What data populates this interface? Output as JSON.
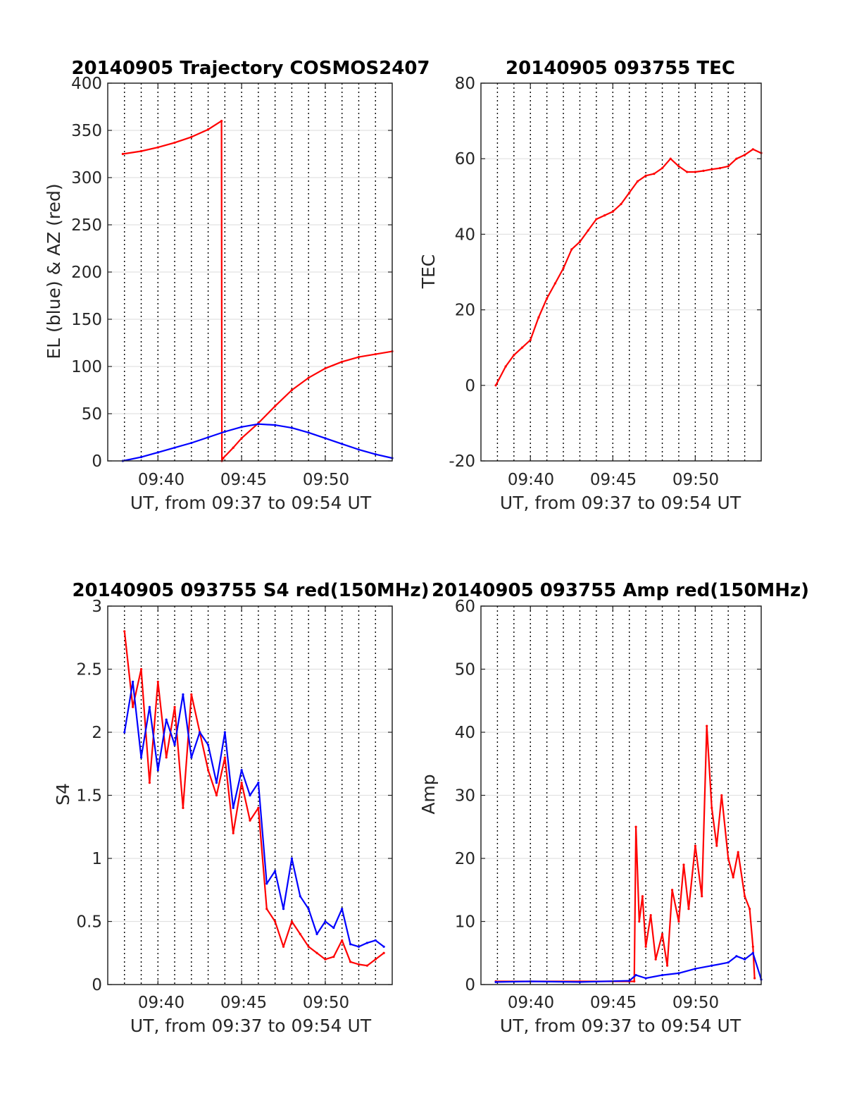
{
  "figure": {
    "xlabel": "UT, from 09:37 to 09:54 UT",
    "x_tick_labels": [
      "09:40",
      "09:45",
      "09:50"
    ]
  },
  "chart_data": [
    {
      "type": "line",
      "title": "20140905 Trajectory COSMOS2407",
      "xlabel": "UT, from 09:37 to 09:54 UT",
      "ylabel": "EL (blue) & AZ (red)",
      "x_unit": "minutes after 09:37 UT",
      "xlim": [
        0,
        17
      ],
      "ylim": [
        0,
        400
      ],
      "yticks": [
        0,
        50,
        100,
        150,
        200,
        250,
        300,
        350,
        400
      ],
      "grid": true,
      "series": [
        {
          "name": "AZ",
          "color": "#ff0000",
          "x": [
            0.9,
            2,
            3,
            4,
            5,
            6,
            6.8,
            6.82,
            6.9,
            7.5,
            8,
            9,
            10,
            11,
            12,
            13,
            14,
            15,
            16,
            17
          ],
          "y": [
            325,
            328,
            332,
            337,
            343,
            351,
            360,
            0,
            3,
            14,
            24,
            40,
            58,
            75,
            88,
            98,
            105,
            110,
            113,
            116
          ]
        },
        {
          "name": "EL",
          "color": "#0000ff",
          "x": [
            0.9,
            2,
            3,
            4,
            5,
            6,
            7,
            8,
            9,
            10,
            11,
            12,
            13,
            14,
            15,
            16,
            17
          ],
          "y": [
            0,
            4,
            9,
            14,
            19,
            25,
            31,
            36,
            39,
            38,
            35,
            30,
            24,
            18,
            12,
            7,
            3
          ]
        }
      ]
    },
    {
      "type": "line",
      "title": "20140905 093755 TEC",
      "xlabel": "UT, from 09:37 to 09:54 UT",
      "ylabel": "TEC",
      "x_unit": "minutes after 09:37 UT",
      "xlim": [
        0,
        17
      ],
      "ylim": [
        -20,
        80
      ],
      "yticks": [
        -20,
        0,
        20,
        40,
        60,
        80
      ],
      "grid": true,
      "series": [
        {
          "name": "TEC",
          "color": "#ff0000",
          "x": [
            0.9,
            1.5,
            2,
            2.5,
            3,
            3.5,
            4,
            4.5,
            5,
            5.5,
            6,
            6.5,
            7,
            7.5,
            8,
            8.5,
            9,
            9.5,
            10,
            10.5,
            11,
            11.5,
            12,
            12.5,
            13,
            13.5,
            14,
            14.5,
            15,
            15.5,
            16,
            16.5,
            17
          ],
          "y": [
            0,
            5,
            8,
            10,
            12,
            18,
            23,
            27,
            31,
            36,
            38,
            41,
            44,
            45,
            46,
            48,
            51,
            54,
            55.5,
            56,
            57.5,
            60,
            58,
            56.5,
            56.5,
            56.8,
            57.2,
            57.5,
            58,
            60,
            61,
            62.5,
            61.5
          ]
        }
      ]
    },
    {
      "type": "line",
      "title": "20140905 093755 S4 red(150MHz)",
      "xlabel": "UT, from 09:37 to 09:54 UT",
      "ylabel": "S4",
      "x_unit": "minutes after 09:37 UT",
      "xlim": [
        0,
        17
      ],
      "ylim": [
        0,
        3
      ],
      "yticks": [
        0,
        0.5,
        1,
        1.5,
        2,
        2.5,
        3
      ],
      "grid": true,
      "series": [
        {
          "name": "S4 red",
          "color": "#ff0000",
          "x": [
            1.0,
            1.5,
            2,
            2.5,
            3,
            3.5,
            4,
            4.5,
            5,
            5.5,
            6,
            6.5,
            7,
            7.5,
            8,
            8.5,
            9,
            9.5,
            10,
            10.5,
            11,
            11.5,
            12,
            12.5,
            13,
            13.5,
            14,
            14.5,
            15,
            15.5,
            16,
            16.5
          ],
          "y": [
            2.8,
            2.2,
            2.5,
            1.6,
            2.4,
            1.8,
            2.2,
            1.4,
            2.3,
            2.0,
            1.7,
            1.5,
            1.8,
            1.2,
            1.6,
            1.3,
            1.4,
            0.6,
            0.5,
            0.3,
            0.5,
            0.4,
            0.3,
            0.25,
            0.2,
            0.22,
            0.35,
            0.18,
            0.16,
            0.15,
            0.2,
            0.25
          ]
        },
        {
          "name": "S4 blue",
          "color": "#0000ff",
          "x": [
            1.0,
            1.5,
            2,
            2.5,
            3,
            3.5,
            4,
            4.5,
            5,
            5.5,
            6,
            6.5,
            7,
            7.5,
            8,
            8.5,
            9,
            9.5,
            10,
            10.5,
            11,
            11.5,
            12,
            12.5,
            13,
            13.5,
            14,
            14.5,
            15,
            15.5,
            16,
            16.5
          ],
          "y": [
            2.0,
            2.4,
            1.8,
            2.2,
            1.7,
            2.1,
            1.9,
            2.3,
            1.8,
            2.0,
            1.9,
            1.6,
            2.0,
            1.4,
            1.7,
            1.5,
            1.6,
            0.8,
            0.9,
            0.6,
            1.0,
            0.7,
            0.6,
            0.4,
            0.5,
            0.45,
            0.6,
            0.32,
            0.3,
            0.33,
            0.35,
            0.3
          ]
        }
      ]
    },
    {
      "type": "line",
      "title": "20140905 093755 Amp red(150MHz)",
      "xlabel": "UT, from 09:37 to 09:54 UT",
      "ylabel": "Amp",
      "x_unit": "minutes after 09:37 UT",
      "xlim": [
        0,
        17
      ],
      "ylim": [
        0,
        60
      ],
      "yticks": [
        0,
        10,
        20,
        30,
        40,
        50,
        60
      ],
      "grid": true,
      "series": [
        {
          "name": "Amp red",
          "color": "#ff0000",
          "x": [
            0.9,
            3,
            6,
            9,
            9.3,
            9.4,
            9.6,
            9.8,
            10,
            10.3,
            10.6,
            11,
            11.3,
            11.6,
            12,
            12.3,
            12.6,
            13,
            13.4,
            13.7,
            14,
            14.3,
            14.6,
            15,
            15.3,
            15.6,
            16,
            16.3,
            16.5,
            16.6
          ],
          "y": [
            0.5,
            0.5,
            0.5,
            0.5,
            0.5,
            25,
            10,
            14,
            6,
            11,
            4,
            8,
            3,
            15,
            10,
            19,
            12,
            22,
            14,
            41,
            28,
            22,
            30,
            20,
            17,
            21,
            14,
            12,
            6,
            1
          ]
        },
        {
          "name": "Amp blue",
          "color": "#0000ff",
          "x": [
            0.9,
            3,
            6,
            9,
            9.4,
            10,
            11,
            12,
            13,
            14,
            15,
            15.5,
            16,
            16.5,
            17
          ],
          "y": [
            0.4,
            0.5,
            0.4,
            0.6,
            1.5,
            1.0,
            1.5,
            1.8,
            2.5,
            3.0,
            3.5,
            4.5,
            4.0,
            5.0,
            0.8
          ]
        }
      ]
    }
  ]
}
